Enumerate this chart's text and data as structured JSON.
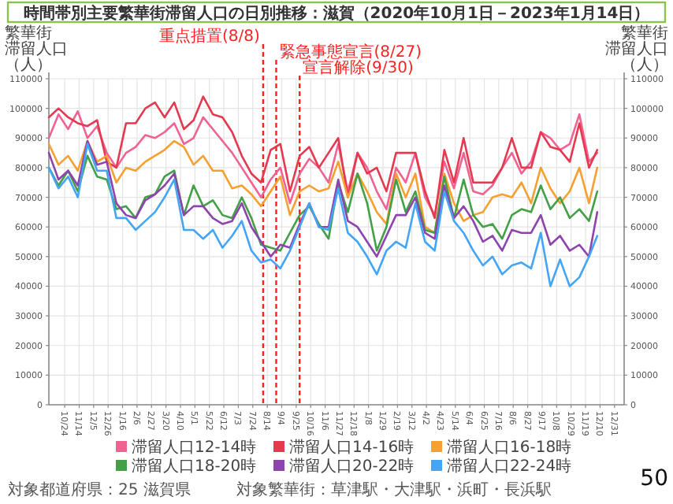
{
  "chart_data": {
    "type": "line",
    "title": "時間帯別主要繁華街滞留人口の日別推移：滋賀（2020年10月1日－2023年1月14日）",
    "ylabel": "繁華街滞留人口（人）",
    "y2label": "繁華街滞留人口（人）",
    "x": [
      "2020-10-01",
      "2020-10-15",
      "2020-10-29",
      "2020-11-12",
      "2020-11-26",
      "2020-12-10",
      "2020-12-24",
      "2021-01-07",
      "2021-01-21",
      "2021-02-04",
      "2021-02-18",
      "2021-03-04",
      "2021-03-18",
      "2021-04-01",
      "2021-04-15",
      "2021-04-29",
      "2021-05-13",
      "2021-05-27",
      "2021-06-10",
      "2021-06-24",
      "2021-07-08",
      "2021-07-22",
      "2021-08-05",
      "2021-08-19",
      "2021-09-02",
      "2021-09-16",
      "2021-09-30",
      "2021-10-14",
      "2021-10-28",
      "2021-11-11",
      "2021-11-25",
      "2021-12-09",
      "2021-12-23",
      "2022-01-06",
      "2022-01-20",
      "2022-02-03",
      "2022-02-17",
      "2022-03-03",
      "2022-03-17",
      "2022-03-31",
      "2022-04-14",
      "2022-04-28",
      "2022-05-12",
      "2022-05-26",
      "2022-06-09",
      "2022-06-23",
      "2022-07-07",
      "2022-07-21",
      "2022-08-04",
      "2022-08-18",
      "2022-09-01",
      "2022-09-15",
      "2022-09-29",
      "2022-10-13",
      "2022-10-27",
      "2022-11-10",
      "2022-11-24",
      "2022-12-06"
    ],
    "series": [
      {
        "name": "滞留人口12-14時",
        "color": "#f06292",
        "values": [
          90000,
          98000,
          93000,
          99000,
          90000,
          94000,
          85000,
          80000,
          85000,
          87000,
          91000,
          90000,
          92000,
          95000,
          88000,
          90000,
          97000,
          93000,
          89000,
          85000,
          80000,
          75000,
          70000,
          76000,
          80000,
          68000,
          78000,
          83000,
          80000,
          75000,
          88000,
          72000,
          85000,
          80000,
          72000,
          66000,
          80000,
          75000,
          85000,
          70000,
          64000,
          82000,
          73000,
          85000,
          72000,
          71000,
          74000,
          80000,
          85000,
          78000,
          82000,
          92000,
          90000,
          86000,
          88000,
          98000,
          82000,
          85000
        ]
      },
      {
        "name": "滞留人口14-16時",
        "color": "#e53950",
        "values": [
          97000,
          100000,
          97000,
          95000,
          94000,
          96000,
          82000,
          80000,
          95000,
          95000,
          100000,
          102000,
          97000,
          102000,
          93000,
          96000,
          104000,
          98000,
          97000,
          92000,
          84000,
          78000,
          75000,
          86000,
          88000,
          72000,
          84000,
          87000,
          80000,
          85000,
          90000,
          70000,
          85000,
          78000,
          80000,
          72000,
          85000,
          85000,
          85000,
          72000,
          63000,
          86000,
          75000,
          90000,
          75000,
          75000,
          75000,
          80000,
          90000,
          80000,
          80000,
          92000,
          87000,
          86000,
          82000,
          95000,
          80000,
          86000
        ]
      },
      {
        "name": "滞留人口16-18時",
        "color": "#f5a030",
        "values": [
          88000,
          81000,
          84000,
          79000,
          89000,
          82000,
          84000,
          75000,
          80000,
          79000,
          82000,
          84000,
          86000,
          89000,
          87000,
          81000,
          84000,
          79000,
          79000,
          73000,
          74000,
          71000,
          67000,
          72000,
          77000,
          64000,
          72000,
          74000,
          72000,
          73000,
          82000,
          70000,
          78000,
          72000,
          65000,
          61000,
          78000,
          70000,
          78000,
          60000,
          58000,
          78000,
          68000,
          62000,
          64000,
          65000,
          70000,
          71000,
          70000,
          75000,
          68000,
          80000,
          73000,
          68000,
          72000,
          80000,
          68000,
          80000
        ]
      },
      {
        "name": "滞留人口18-20時",
        "color": "#43a047",
        "values": [
          80000,
          74000,
          79000,
          72000,
          84000,
          77000,
          76000,
          66000,
          67000,
          63000,
          70000,
          71000,
          77000,
          79000,
          64000,
          74000,
          67000,
          69000,
          64000,
          63000,
          70000,
          63000,
          54000,
          53000,
          52000,
          58000,
          64000,
          67000,
          61000,
          56000,
          75000,
          65000,
          78000,
          68000,
          52000,
          60000,
          76000,
          65000,
          72000,
          59000,
          58000,
          77000,
          63000,
          76000,
          64000,
          60000,
          61000,
          56000,
          64000,
          66000,
          65000,
          74000,
          66000,
          70000,
          63000,
          66000,
          62000,
          72000
        ]
      },
      {
        "name": "滞留人口20-22時",
        "color": "#8e44ad",
        "values": [
          85000,
          76000,
          79000,
          74000,
          89000,
          81000,
          82000,
          68000,
          64000,
          63000,
          69000,
          71000,
          74000,
          78000,
          64000,
          67000,
          67000,
          63000,
          61000,
          62000,
          68000,
          60000,
          55000,
          50000,
          54000,
          53000,
          61000,
          68000,
          60000,
          60000,
          76000,
          62000,
          60000,
          55000,
          50000,
          57000,
          64000,
          64000,
          70000,
          58000,
          56000,
          74000,
          63000,
          67000,
          62000,
          55000,
          57000,
          52000,
          59000,
          58000,
          58000,
          64000,
          54000,
          57000,
          52000,
          54000,
          50000,
          65000
        ]
      },
      {
        "name": "滞留人口22-24時",
        "color": "#42a5f5",
        "values": [
          80000,
          73000,
          77000,
          70000,
          88000,
          79000,
          79000,
          63000,
          63000,
          59000,
          62000,
          65000,
          70000,
          76000,
          59000,
          59000,
          56000,
          59000,
          53000,
          57000,
          62000,
          52000,
          48000,
          49000,
          46000,
          52000,
          60000,
          68000,
          60000,
          59000,
          73000,
          58000,
          55000,
          50000,
          44000,
          52000,
          55000,
          53000,
          68000,
          55000,
          52000,
          72000,
          62000,
          58000,
          52000,
          47000,
          50000,
          44000,
          47000,
          48000,
          46000,
          58000,
          40000,
          49000,
          40000,
          43000,
          50000,
          57000
        ]
      }
    ],
    "xlim": [
      "2020-10-01",
      "2023-01-14"
    ],
    "xticks": [
      {
        "value": "2020-10-24",
        "label": "10/24"
      },
      {
        "value": "2020-11-14",
        "label": "11/14"
      },
      {
        "value": "2020-12-05",
        "label": "12/5"
      },
      {
        "value": "2020-12-26",
        "label": "12/26"
      },
      {
        "value": "2021-01-16",
        "label": "1/16"
      },
      {
        "value": "2021-02-06",
        "label": "2/6"
      },
      {
        "value": "2021-02-27",
        "label": "2/27"
      },
      {
        "value": "2021-03-20",
        "label": "3/20"
      },
      {
        "value": "2021-04-10",
        "label": "4/10"
      },
      {
        "value": "2021-05-01",
        "label": "5/1"
      },
      {
        "value": "2021-05-22",
        "label": "5/22"
      },
      {
        "value": "2021-06-12",
        "label": "6/12"
      },
      {
        "value": "2021-07-03",
        "label": "7/3"
      },
      {
        "value": "2021-07-24",
        "label": "7/24"
      },
      {
        "value": "2021-08-14",
        "label": "8/14"
      },
      {
        "value": "2021-09-04",
        "label": "9/4"
      },
      {
        "value": "2021-09-25",
        "label": "9/25"
      },
      {
        "value": "2021-10-16",
        "label": "10/16"
      },
      {
        "value": "2021-11-06",
        "label": "11/6"
      },
      {
        "value": "2021-11-27",
        "label": "11/27"
      },
      {
        "value": "2021-12-18",
        "label": "12/18"
      },
      {
        "value": "2022-01-08",
        "label": "1/8"
      },
      {
        "value": "2022-01-29",
        "label": "1/29"
      },
      {
        "value": "2022-02-19",
        "label": "2/19"
      },
      {
        "value": "2022-03-12",
        "label": "3/12"
      },
      {
        "value": "2022-04-02",
        "label": "4/2"
      },
      {
        "value": "2022-04-23",
        "label": "4/23"
      },
      {
        "value": "2022-05-14",
        "label": "5/14"
      },
      {
        "value": "2022-06-04",
        "label": "6/4"
      },
      {
        "value": "2022-06-25",
        "label": "6/25"
      },
      {
        "value": "2022-07-16",
        "label": "7/16"
      },
      {
        "value": "2022-08-06",
        "label": "8/6"
      },
      {
        "value": "2022-08-27",
        "label": "8/27"
      },
      {
        "value": "2022-09-17",
        "label": "9/17"
      },
      {
        "value": "2022-10-08",
        "label": "10/8"
      },
      {
        "value": "2022-10-29",
        "label": "10/29"
      },
      {
        "value": "2022-11-19",
        "label": "11/19"
      },
      {
        "value": "2022-12-10",
        "label": "12/10"
      },
      {
        "value": "2022-12-31",
        "label": "12/31"
      }
    ],
    "ylim": [
      0,
      110000
    ],
    "yticks": [
      0,
      10000,
      20000,
      30000,
      40000,
      50000,
      60000,
      70000,
      80000,
      90000,
      100000,
      110000
    ],
    "y2lim": [
      0,
      110000
    ],
    "y2ticks": [
      0,
      10000,
      20000,
      30000,
      40000,
      50000,
      60000,
      70000,
      80000,
      90000,
      100000,
      110000
    ],
    "ref_lines": [
      {
        "axis": "x",
        "value": "2021-08-08",
        "label": "重点措置(8/8)",
        "color": "#ff2020",
        "line_style": "dashed"
      },
      {
        "axis": "x",
        "value": "2021-08-27",
        "label": "緊急事態宣言(8/27)",
        "color": "#ff2020",
        "line_style": "dashed"
      },
      {
        "axis": "x",
        "value": "2021-09-30",
        "label": "宣言解除(9/30)",
        "color": "#ff2020",
        "line_style": "dashed"
      }
    ],
    "grid": true,
    "legend": "bottom",
    "line_style": "solid",
    "annotations": [
      "対象都道府県：25 滋賀県",
      "対象繁華街：草津駅・大津駅・浜町・長浜駅",
      "50"
    ]
  }
}
